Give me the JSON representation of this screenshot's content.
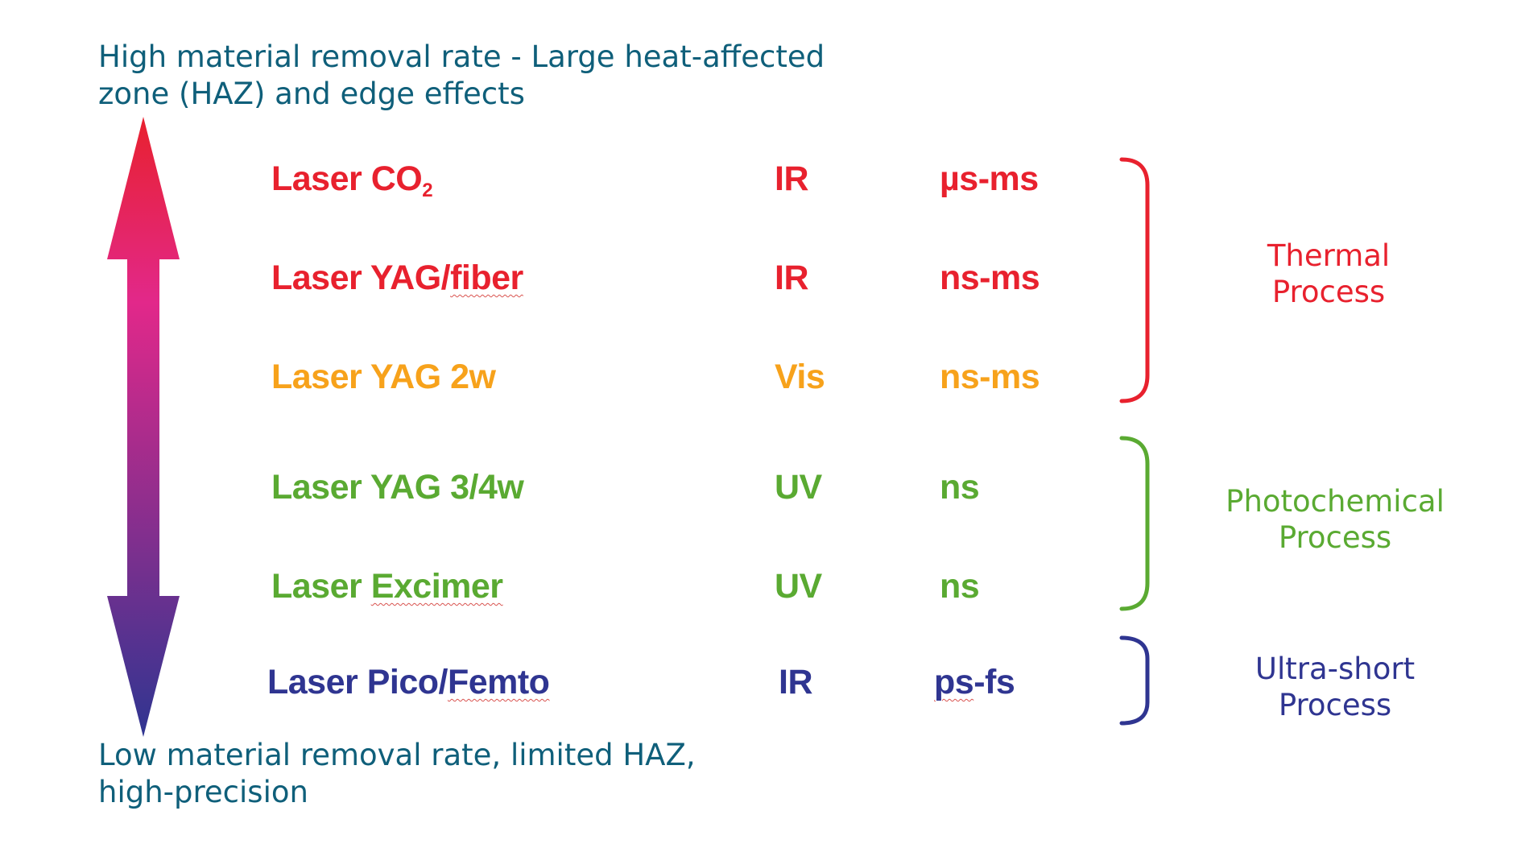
{
  "captions": {
    "top_line1": "High material removal rate - Large heat-affected",
    "top_line2": "zone (HAZ) and edge effects",
    "bottom_line1": "Low material removal rate, limited HAZ,",
    "bottom_line2": "high-precision"
  },
  "colors": {
    "red": "#e8212e",
    "orange": "#f7a21b",
    "green": "#5aaa32",
    "navy": "#2f3591",
    "teal": "#0f5f7a",
    "arrow_mid": "#e2288a"
  },
  "lasers": [
    {
      "name": "Laser CO",
      "sub": "2",
      "band": "IR",
      "pulse": "µs-ms",
      "color": "#e8212e"
    },
    {
      "name": "Laser YAG/fiber",
      "band": "IR",
      "pulse": "ns-ms",
      "color": "#e8212e"
    },
    {
      "name": "Laser YAG 2w",
      "band": "Vis",
      "pulse": "ns-ms",
      "color": "#f7a21b"
    },
    {
      "name": "Laser YAG 3/4w",
      "band": "UV",
      "pulse": "ns",
      "color": "#5aaa32"
    },
    {
      "name": "Laser Excimer",
      "band": "UV",
      "pulse": "ns",
      "color": "#5aaa32"
    },
    {
      "name": "Laser Pico/Femto",
      "band": "IR",
      "pulse": "ps-fs",
      "color": "#2f3591"
    }
  ],
  "processes": [
    {
      "line1": "Thermal",
      "line2": "Process",
      "color": "#e8212e"
    },
    {
      "line1": "Photochemical",
      "line2": "Process",
      "color": "#5aaa32"
    },
    {
      "line1": "Ultra-short",
      "line2": "Process",
      "color": "#2f3591"
    }
  ]
}
